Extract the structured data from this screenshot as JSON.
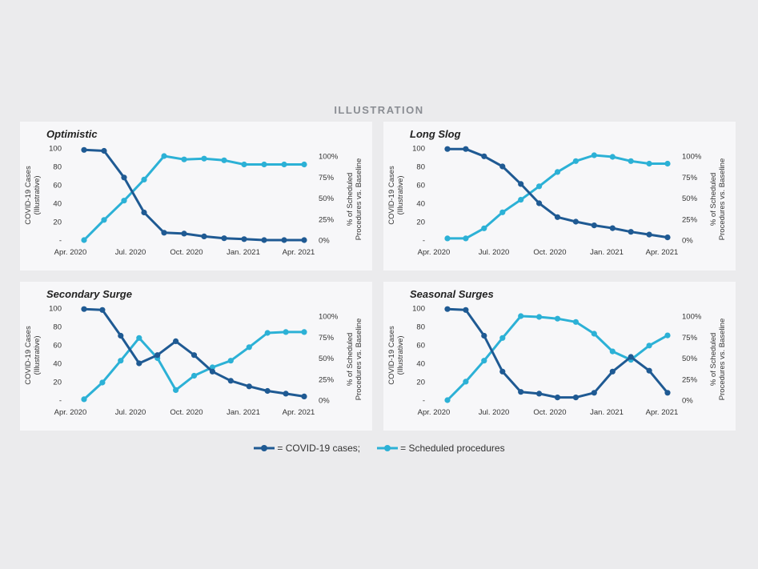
{
  "heading": "ILLUSTRATION",
  "legend": {
    "cases_label": "= COVID-19 cases;",
    "procedures_label": "= Scheduled procedures"
  },
  "colors": {
    "cases": "#1f5a93",
    "procedures": "#2cb1d6",
    "panel_bg": "#f7f7f9",
    "page_bg": "#ebebed"
  },
  "chart_data": [
    {
      "type": "line",
      "title": "Optimistic",
      "ylabel_left": [
        "COVID-19 Cases",
        "(Illustrative)"
      ],
      "ylabel_right": [
        "% of Scheduled",
        "Procedures vs. Baseline"
      ],
      "left_ticks": [
        "100",
        "80",
        "60",
        "40",
        "20",
        "-"
      ],
      "right_ticks": [
        "100%",
        "75%",
        "50%",
        "25%",
        "0%"
      ],
      "x_ticks": [
        "Apr. 2020",
        "Jul. 2020",
        "Oct. 2020",
        "Jan. 2021",
        "Apr. 2021"
      ],
      "ylim_left": [
        0,
        100
      ],
      "ylim_right": [
        0,
        100
      ],
      "series": [
        {
          "name": "COVID-19 cases",
          "axis": "left",
          "values": [
            98,
            97,
            68,
            30,
            8,
            7,
            4,
            2,
            1,
            0,
            0,
            0
          ]
        },
        {
          "name": "Scheduled procedures",
          "axis": "right",
          "values": [
            0,
            24,
            47,
            72,
            100,
            96,
            97,
            95,
            90,
            90,
            90,
            90
          ]
        }
      ]
    },
    {
      "type": "line",
      "title": "Long Slog",
      "ylabel_left": [
        "COVID-19 Cases",
        "(Illustrative)"
      ],
      "ylabel_right": [
        "% of Scheduled",
        "Procedures vs. Baseline"
      ],
      "left_ticks": [
        "100",
        "80",
        "60",
        "40",
        "20",
        "-"
      ],
      "right_ticks": [
        "100%",
        "75%",
        "50%",
        "25%",
        "0%"
      ],
      "x_ticks": [
        "Apr. 2020",
        "Jul. 2020",
        "Oct. 2020",
        "Jan. 2021",
        "Apr. 2021"
      ],
      "ylim_left": [
        0,
        100
      ],
      "ylim_right": [
        0,
        100
      ],
      "series": [
        {
          "name": "COVID-19 cases",
          "axis": "left",
          "values": [
            99,
            99,
            91,
            80,
            61,
            40,
            25,
            20,
            16,
            13,
            9,
            6,
            3
          ]
        },
        {
          "name": "Scheduled procedures",
          "axis": "right",
          "values": [
            2,
            2,
            14,
            33,
            48,
            64,
            81,
            94,
            101,
            99,
            94,
            91,
            91
          ]
        }
      ]
    },
    {
      "type": "line",
      "title": "Secondary Surge",
      "ylabel_left": [
        "COVID-19 Cases",
        "(Illustrative)"
      ],
      "ylabel_right": [
        "% of Scheduled",
        "Procedures vs. Baseline"
      ],
      "left_ticks": [
        "100",
        "80",
        "60",
        "40",
        "20",
        "-"
      ],
      "right_ticks": [
        "100%",
        "75%",
        "50%",
        "25%",
        "0%"
      ],
      "x_ticks": [
        "Apr. 2020",
        "Jul. 2020",
        "Oct. 2020",
        "Jan. 2021",
        "Apr. 2021"
      ],
      "ylim_left": [
        0,
        100
      ],
      "ylim_right": [
        0,
        100
      ],
      "series": [
        {
          "name": "COVID-19 cases",
          "axis": "left",
          "values": [
            99,
            98,
            70,
            40,
            49,
            64,
            49,
            31,
            21,
            15,
            10,
            7,
            4
          ]
        },
        {
          "name": "Scheduled procedures",
          "axis": "right",
          "values": [
            1,
            21,
            47,
            74,
            50,
            12,
            29,
            39,
            47,
            63,
            80,
            81,
            81
          ]
        }
      ]
    },
    {
      "type": "line",
      "title": "Seasonal Surges",
      "ylabel_left": [
        "COVID-19 Cases",
        "(Illustrative)"
      ],
      "ylabel_right": [
        "% of Scheduled",
        "Procedures vs. Baseline"
      ],
      "left_ticks": [
        "100",
        "80",
        "60",
        "40",
        "20",
        "-"
      ],
      "right_ticks": [
        "100%",
        "75%",
        "50%",
        "25%",
        "0%"
      ],
      "x_ticks": [
        "Apr. 2020",
        "Jul. 2020",
        "Oct. 2020",
        "Jan. 2021",
        "Apr. 2021"
      ],
      "ylim_left": [
        0,
        100
      ],
      "ylim_right": [
        0,
        100
      ],
      "series": [
        {
          "name": "COVID-19 cases",
          "axis": "left",
          "values": [
            99,
            98,
            70,
            31,
            9,
            7,
            3,
            3,
            8,
            31,
            47,
            32,
            8
          ]
        },
        {
          "name": "Scheduled procedures",
          "axis": "right",
          "values": [
            0,
            22,
            47,
            74,
            100,
            99,
            97,
            93,
            79,
            58,
            48,
            65,
            77
          ]
        }
      ]
    }
  ]
}
